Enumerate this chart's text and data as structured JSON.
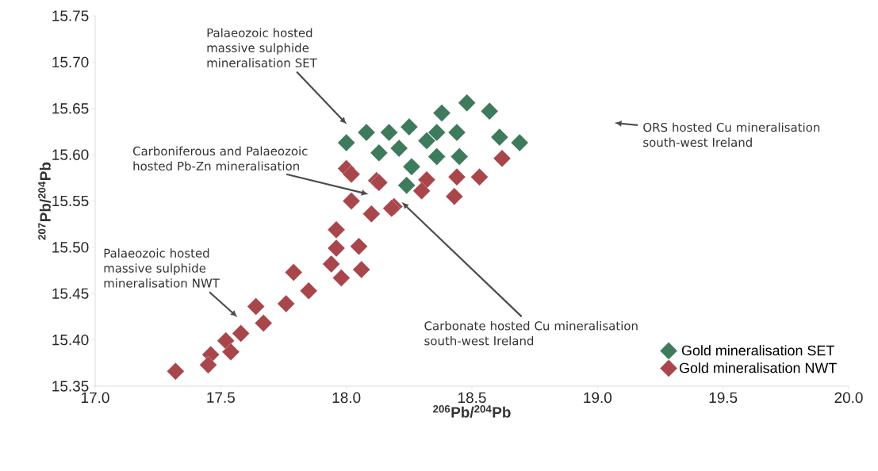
{
  "chart_data": {
    "type": "scatter",
    "xlabel": "$^{206}$Pb/$^{204}$Pb",
    "ylabel": "$^{207}$Pb/$^{204}$Pb",
    "xlim": [
      17.0,
      20.0
    ],
    "ylim": [
      15.35,
      15.75
    ],
    "xticks": [
      {
        "value": 17.0,
        "label": "17.0"
      },
      {
        "value": 17.5,
        "label": "17.5"
      },
      {
        "value": 18.0,
        "label": "18.0"
      },
      {
        "value": 18.5,
        "label": "18.5"
      },
      {
        "value": 19.0,
        "label": "19.0"
      },
      {
        "value": 19.5,
        "label": "19.5"
      },
      {
        "value": 20.0,
        "label": "20.0"
      }
    ],
    "yticks": [
      15.35,
      {
        "value": 15.4,
        "label": "15.40"
      },
      15.45,
      {
        "value": 15.5,
        "label": "15.50"
      },
      15.55,
      {
        "value": 15.6,
        "label": "15.60"
      },
      15.65,
      {
        "value": 15.7,
        "label": "15.70"
      },
      15.75
    ],
    "marker": "diamond",
    "legend": "bottom right",
    "grid": false,
    "series": [
      {
        "name": "Gold mineralisation SET",
        "color": "#3e7a5c",
        "x": [
          18.48,
          18.57,
          18.38,
          18.0,
          18.08,
          18.17,
          18.25,
          18.13,
          18.21,
          18.32,
          18.36,
          18.44,
          18.36,
          18.45,
          18.26,
          18.24,
          18.61,
          18.69
        ],
        "values": [
          15.656,
          15.647,
          15.645,
          15.613,
          15.624,
          15.624,
          15.63,
          15.602,
          15.607,
          15.615,
          15.624,
          15.624,
          15.598,
          15.598,
          15.587,
          15.567,
          15.619,
          15.613
        ]
      },
      {
        "name": "Gold mineralisation NWT",
        "color": "#a8464b",
        "x": [
          18.62,
          18.0,
          18.12,
          18.32,
          18.44,
          18.53,
          18.43,
          18.19,
          18.3,
          18.02,
          18.13,
          18.02,
          18.1,
          18.18,
          17.96,
          17.96,
          18.05,
          17.94,
          18.06,
          17.98,
          17.79,
          17.85,
          17.76,
          17.64,
          17.67,
          17.58,
          17.52,
          17.46,
          17.54,
          17.45,
          17.32
        ],
        "values": [
          15.596,
          15.585,
          15.572,
          15.573,
          15.576,
          15.576,
          15.555,
          15.544,
          15.561,
          15.579,
          15.57,
          15.55,
          15.536,
          15.542,
          15.519,
          15.499,
          15.501,
          15.482,
          15.476,
          15.467,
          15.473,
          15.453,
          15.439,
          15.436,
          15.418,
          15.407,
          15.399,
          15.384,
          15.387,
          15.373,
          15.366
        ]
      }
    ],
    "annotations": [
      "Palaeozoic hosted massive sulphide mineralisation SET",
      "Carboniferous and Palaeozoic hosted Pb-Zn mineralisation",
      {
        "text": "Carbonate hosted Cu mineralisation south-west Ireland",
        "x": 18.22,
        "y": 15.549
      },
      "ORS hosted Cu mineralisation south-west Ireland",
      "Palaeozoic hosted massive sulphide mineralisation NWT"
    ]
  }
}
